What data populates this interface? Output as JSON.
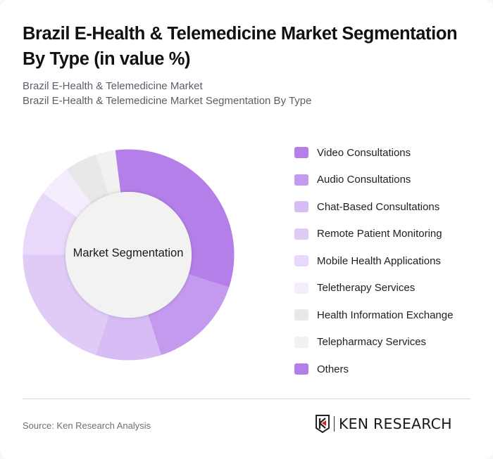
{
  "header": {
    "title": "Brazil E-Health & Telemedicine Market Segmentation By Type (in value %)",
    "subtitle_line1": "Brazil E-Health & Telemedicine Market",
    "subtitle_line2": "Brazil E-Health & Telemedicine Market Segmentation By Type"
  },
  "chart": {
    "center_label": "Market Segmentation"
  },
  "legend": {
    "items": [
      {
        "label": "Video Consultations",
        "color": "#b57fe9"
      },
      {
        "label": "Audio Consultations",
        "color": "#c49aee"
      },
      {
        "label": "Chat-Based Consultations",
        "color": "#d8bcf6"
      },
      {
        "label": "Remote Patient Monitoring",
        "color": "#e0cbf7"
      },
      {
        "label": "Mobile Health Applications",
        "color": "#e8d8fa"
      },
      {
        "label": "Teletherapy Services",
        "color": "#f3edfc"
      },
      {
        "label": "Health Information Exchange",
        "color": "#e8e8e8"
      },
      {
        "label": "Telepharmacy Services",
        "color": "#f1f1f1"
      },
      {
        "label": "Others",
        "color": "#b57fe9"
      }
    ]
  },
  "footer": {
    "source": "Source: Ken Research Analysis",
    "logo_text": "KEN RESEARCH"
  },
  "chart_data": {
    "type": "pie",
    "subtype": "donut",
    "title": "Brazil E-Health & Telemedicine Market Segmentation By Type (in value %)",
    "center_label": "Market Segmentation",
    "categories": [
      "Video Consultations",
      "Audio Consultations",
      "Chat-Based Consultations",
      "Remote Patient Monitoring",
      "Mobile Health Applications",
      "Teletherapy Services",
      "Health Information Exchange",
      "Telepharmacy Services",
      "Others"
    ],
    "values": [
      30,
      15,
      10,
      20,
      10,
      5,
      5,
      3,
      2
    ],
    "colors": [
      "#b57fe9",
      "#c49aee",
      "#d8bcf6",
      "#e0cbf7",
      "#e8d8fa",
      "#f3edfc",
      "#e8e8e8",
      "#f1f1f1",
      "#b57fe9"
    ],
    "unit": "%",
    "legend_position": "right"
  }
}
